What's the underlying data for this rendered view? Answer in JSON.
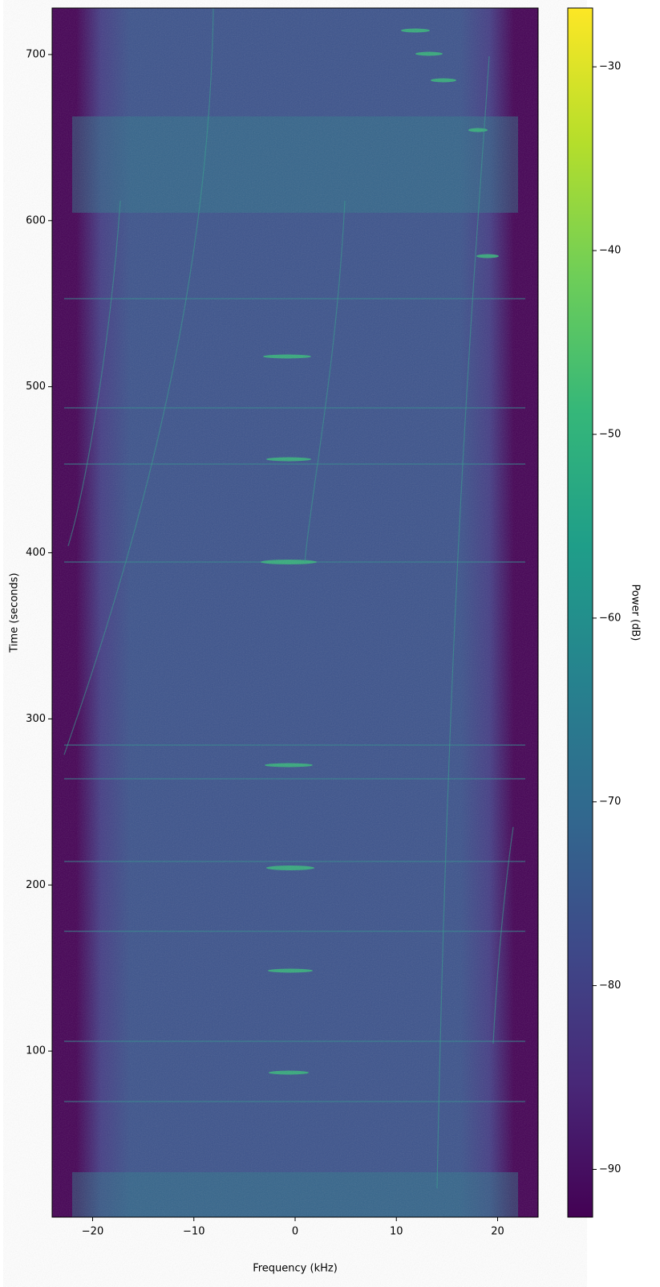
{
  "chart_data": {
    "type": "spectrogram",
    "xlabel": "Frequency (kHz)",
    "ylabel": "Time (seconds)",
    "xlim": [
      -24,
      24
    ],
    "xticks": [
      {
        "value": -20,
        "label": "−20"
      },
      {
        "value": -10,
        "label": "−10"
      },
      0,
      10,
      20
    ],
    "ylim": [
      0,
      728
    ],
    "yticks": [
      100,
      200,
      300,
      400,
      500,
      600,
      700
    ],
    "colormap": [
      "#440154",
      "#482878",
      "#3e4989",
      "#31688e",
      "#26828e",
      "#1f9e89",
      "#35b779",
      "#6ece58",
      "#b5de2b",
      "#fde725"
    ],
    "colorbar": {
      "label": "Power (dB)",
      "lim": [
        -92.6,
        -26.8
      ],
      "ticks": [
        {
          "value": -90,
          "label": "−90"
        },
        {
          "value": -80,
          "label": "−80"
        },
        {
          "value": -70,
          "label": "−70"
        },
        {
          "value": -60,
          "label": "−60"
        },
        {
          "value": -50,
          "label": "−50"
        },
        {
          "value": -40,
          "label": "−40"
        },
        {
          "value": -30,
          "label": "−30"
        }
      ]
    }
  }
}
